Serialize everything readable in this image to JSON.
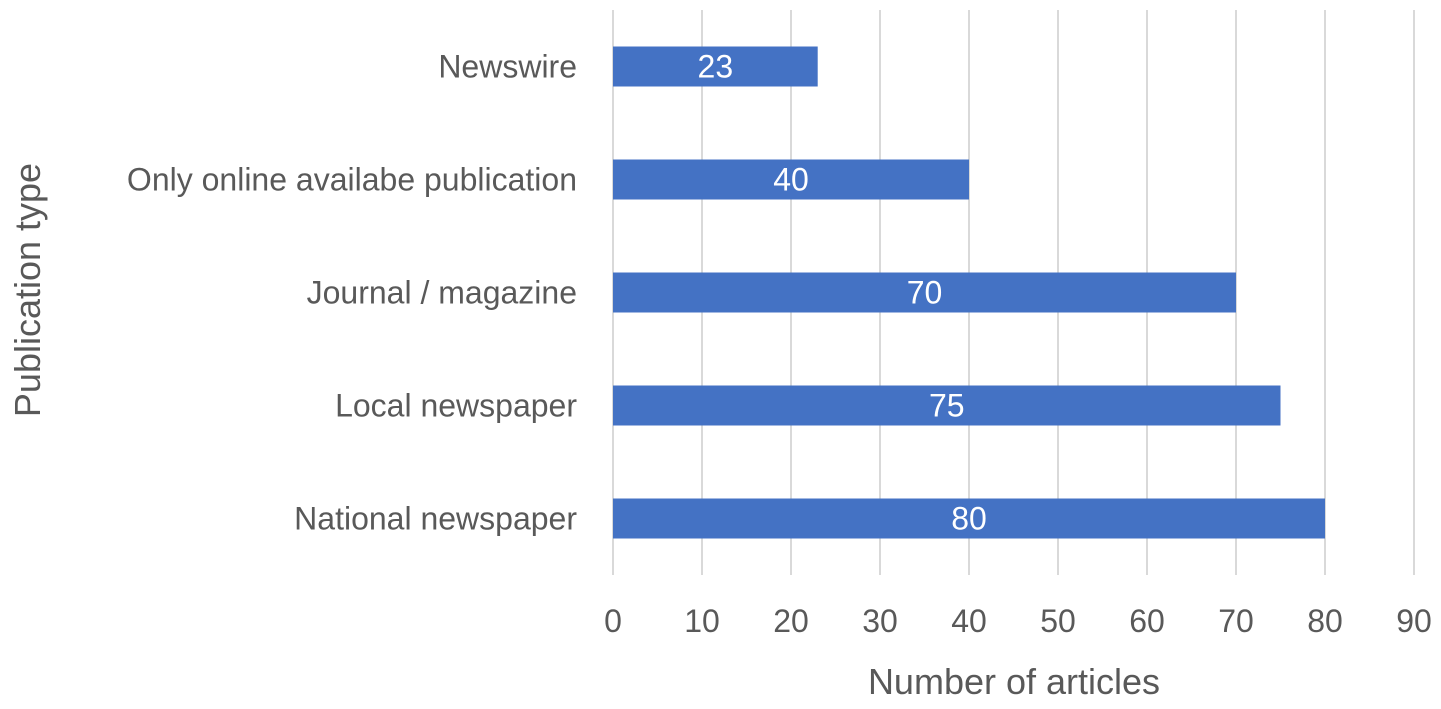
{
  "chart_data": {
    "type": "bar",
    "orientation": "horizontal",
    "categories": [
      "Newswire",
      "Only online availabe publication",
      "Journal / magazine",
      "Local newspaper",
      "National newspaper"
    ],
    "values": [
      23,
      40,
      70,
      75,
      80
    ],
    "data_labels": [
      "23",
      "40",
      "70",
      "75",
      "80"
    ],
    "xlabel": "Number of articles",
    "ylabel": "Publication type",
    "xlim": [
      0,
      90
    ],
    "x_ticks": [
      "0",
      "10",
      "20",
      "30",
      "40",
      "50",
      "60",
      "70",
      "80",
      "90"
    ],
    "x_tick_values": [
      0,
      10,
      20,
      30,
      40,
      50,
      60,
      70,
      80,
      90
    ],
    "grid": "vertical",
    "legend": "none",
    "bar_color": "#4472c4"
  }
}
